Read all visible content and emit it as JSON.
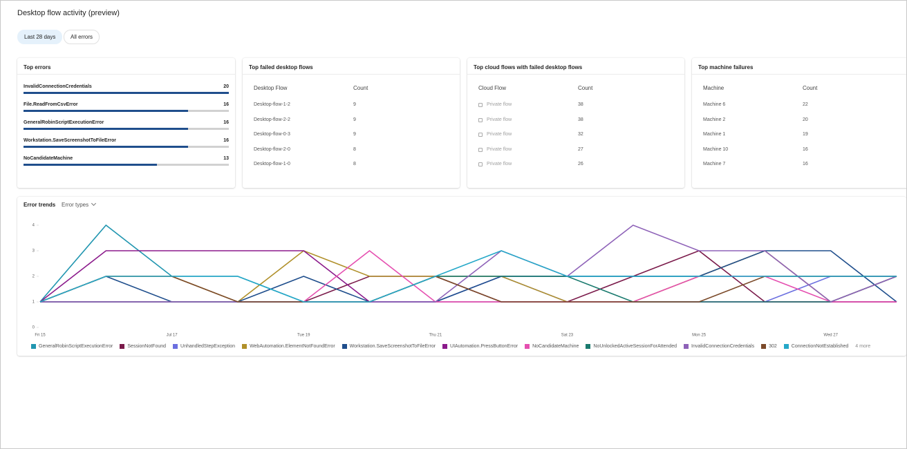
{
  "header": {
    "title": "Desktop flow activity (preview)"
  },
  "filters": [
    "Last 28 days",
    "All errors"
  ],
  "top_errors": {
    "title": "Top errors",
    "items": [
      {
        "name": "InvalidConnectionCredentials",
        "value": 20
      },
      {
        "name": "File.ReadFromCsvError",
        "value": 16
      },
      {
        "name": "GeneralRobinScriptExecutionError",
        "value": 16
      },
      {
        "name": "Workstation.SaveScreenshotToFileError",
        "value": 16
      },
      {
        "name": "NoCandidateMachine",
        "value": 13
      }
    ]
  },
  "top_failed_desktop_flows": {
    "title": "Top failed desktop flows",
    "columns": [
      "Desktop Flow",
      "Count"
    ],
    "rows": [
      [
        "Desktop-flow-1-2",
        9
      ],
      [
        "Desktop-flow-2-2",
        9
      ],
      [
        "Desktop-flow-0-3",
        9
      ],
      [
        "Desktop-flow-2-0",
        8
      ],
      [
        "Desktop-flow-1-0",
        8
      ]
    ]
  },
  "top_cloud_flows": {
    "title": "Top cloud flows with failed desktop flows",
    "columns": [
      "Cloud Flow",
      "Count"
    ],
    "rows": [
      [
        "Private flow",
        38
      ],
      [
        "Private flow",
        38
      ],
      [
        "Private flow",
        32
      ],
      [
        "Private flow",
        27
      ],
      [
        "Private flow",
        26
      ]
    ]
  },
  "top_machine_failures": {
    "title": "Top machine failures",
    "columns": [
      "Machine",
      "Count"
    ],
    "rows": [
      [
        "Machine 6",
        22
      ],
      [
        "Machine 2",
        20
      ],
      [
        "Machine 1",
        19
      ],
      [
        "Machine 10",
        16
      ],
      [
        "Machine 7",
        16
      ]
    ]
  },
  "error_trends": {
    "title": "Error trends",
    "dropdown": "Error types",
    "more": "4 more"
  },
  "chart_data": {
    "type": "line",
    "categories": [
      "Fri 15",
      null,
      "Jul 17",
      null,
      "Tue 19",
      null,
      "Thu 21",
      null,
      "Sat 23",
      null,
      "Mon 25",
      null,
      "Wed 27",
      null
    ],
    "ylim": [
      0,
      4
    ],
    "yticks": [
      0,
      1,
      2,
      3,
      4
    ],
    "grid": false,
    "series": [
      {
        "name": "GeneralRobinScriptExecutionError",
        "color": "#2196b0",
        "values": [
          1,
          4,
          2,
          2,
          1,
          1,
          2,
          2,
          2,
          2,
          2,
          2,
          2,
          2
        ]
      },
      {
        "name": "SessionNotFound",
        "color": "#7a1a4a",
        "values": [
          1,
          1,
          1,
          1,
          1,
          2,
          2,
          1,
          1,
          2,
          3,
          1,
          1,
          1
        ]
      },
      {
        "name": "UnhandledStepException",
        "color": "#6b6fe0",
        "values": [
          1,
          1,
          1,
          1,
          1,
          1,
          1,
          2,
          1,
          1,
          1,
          1,
          2,
          2
        ]
      },
      {
        "name": "WebAutomation.ElementNotFoundError",
        "color": "#b0902a",
        "values": [
          1,
          2,
          2,
          1,
          3,
          2,
          2,
          2,
          1,
          1,
          2,
          3,
          1,
          2
        ]
      },
      {
        "name": "Workstation.SaveScreenshotToFileError",
        "color": "#1f4e8c",
        "values": [
          1,
          2,
          1,
          1,
          2,
          1,
          1,
          2,
          2,
          2,
          2,
          3,
          3,
          1
        ]
      },
      {
        "name": "UIAutomation.PressButtonError",
        "color": "#8b1a8b",
        "values": [
          1,
          3,
          3,
          3,
          3,
          1,
          1,
          1,
          1,
          1,
          1,
          1,
          1,
          1
        ]
      },
      {
        "name": "NoCandidateMachine",
        "color": "#e54fb0",
        "values": [
          1,
          1,
          1,
          1,
          1,
          3,
          1,
          1,
          1,
          1,
          2,
          2,
          1,
          1
        ]
      },
      {
        "name": "NoUnlockedActiveSessionForAttended",
        "color": "#1a7a6e",
        "values": [
          1,
          1,
          1,
          1,
          1,
          1,
          2,
          2,
          2,
          1,
          1,
          1,
          1,
          2
        ]
      },
      {
        "name": "InvalidConnectionCredentials",
        "color": "#8e62b8",
        "values": [
          1,
          1,
          1,
          1,
          1,
          1,
          1,
          3,
          2,
          4,
          3,
          3,
          1,
          2
        ]
      },
      {
        "name": "302",
        "color": "#7b4a2a",
        "values": [
          1,
          2,
          2,
          1,
          1,
          1,
          2,
          1,
          1,
          1,
          1,
          2,
          2,
          2
        ]
      },
      {
        "name": "ConnectionNotEstablished",
        "color": "#25a8c8",
        "values": [
          1,
          2,
          2,
          2,
          1,
          1,
          2,
          3,
          2,
          2,
          2,
          2,
          2,
          2
        ]
      }
    ]
  }
}
